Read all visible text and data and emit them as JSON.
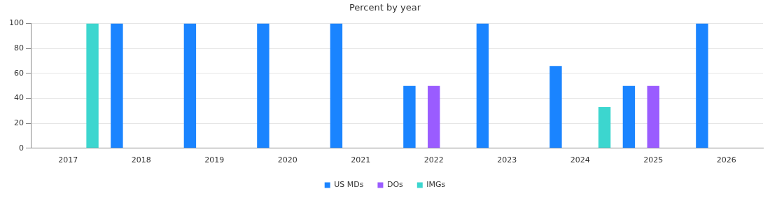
{
  "chart_data": {
    "type": "bar",
    "title": "Percent by year",
    "categories": [
      "2017",
      "2018",
      "2019",
      "2020",
      "2021",
      "2022",
      "2023",
      "2024",
      "2025",
      "2026"
    ],
    "series": [
      {
        "name": "US MDs",
        "color": "#1a84ff",
        "values": [
          null,
          100,
          100,
          100,
          100,
          50,
          100,
          66,
          50,
          100
        ]
      },
      {
        "name": "DOs",
        "color": "#9a5cff",
        "values": [
          null,
          null,
          null,
          null,
          null,
          50,
          null,
          null,
          50,
          null
        ]
      },
      {
        "name": "IMGs",
        "color": "#3cd6cf",
        "values": [
          100,
          null,
          null,
          null,
          null,
          null,
          null,
          33,
          null,
          null
        ]
      }
    ],
    "ylim": [
      0,
      100
    ],
    "yticks": [
      0,
      20,
      40,
      60,
      80,
      100
    ],
    "grid": "y",
    "legend": "bottom"
  }
}
